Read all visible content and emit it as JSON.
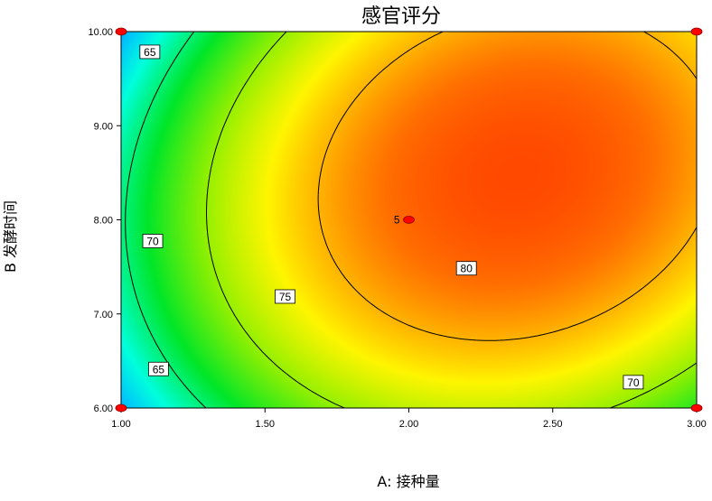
{
  "chart_data": {
    "type": "heatmap",
    "title": "感官评分",
    "xlabel": "A: 接种量",
    "ylabel": "B 发酵时间",
    "xlim": [
      1.0,
      3.0
    ],
    "ylim": [
      6.0,
      10.0
    ],
    "x_ticks": [
      "1.00",
      "1.50",
      "2.00",
      "2.50",
      "3.00"
    ],
    "y_ticks": [
      "6.00",
      "7.00",
      "8.00",
      "9.00",
      "10.00"
    ],
    "contour_levels": [
      65,
      70,
      75,
      80
    ],
    "contour_labels": [
      {
        "text": "65",
        "x": 1.1,
        "y": 9.78
      },
      {
        "text": "70",
        "x": 1.11,
        "y": 7.77
      },
      {
        "text": "75",
        "x": 1.57,
        "y": 7.18
      },
      {
        "text": "80",
        "x": 2.2,
        "y": 7.48
      },
      {
        "text": "65",
        "x": 1.13,
        "y": 6.41
      },
      {
        "text": "70",
        "x": 2.78,
        "y": 6.27
      }
    ],
    "design_points": [
      {
        "x": 1.0,
        "y": 10.0
      },
      {
        "x": 3.0,
        "y": 10.0
      },
      {
        "x": 1.0,
        "y": 6.0
      },
      {
        "x": 3.0,
        "y": 6.0
      },
      {
        "x": 2.0,
        "y": 8.0,
        "label": "5"
      }
    ],
    "colorscale": [
      "#0000ff",
      "#00ffff",
      "#00ff00",
      "#ffff00",
      "#ff8000",
      "#ff3000"
    ]
  }
}
